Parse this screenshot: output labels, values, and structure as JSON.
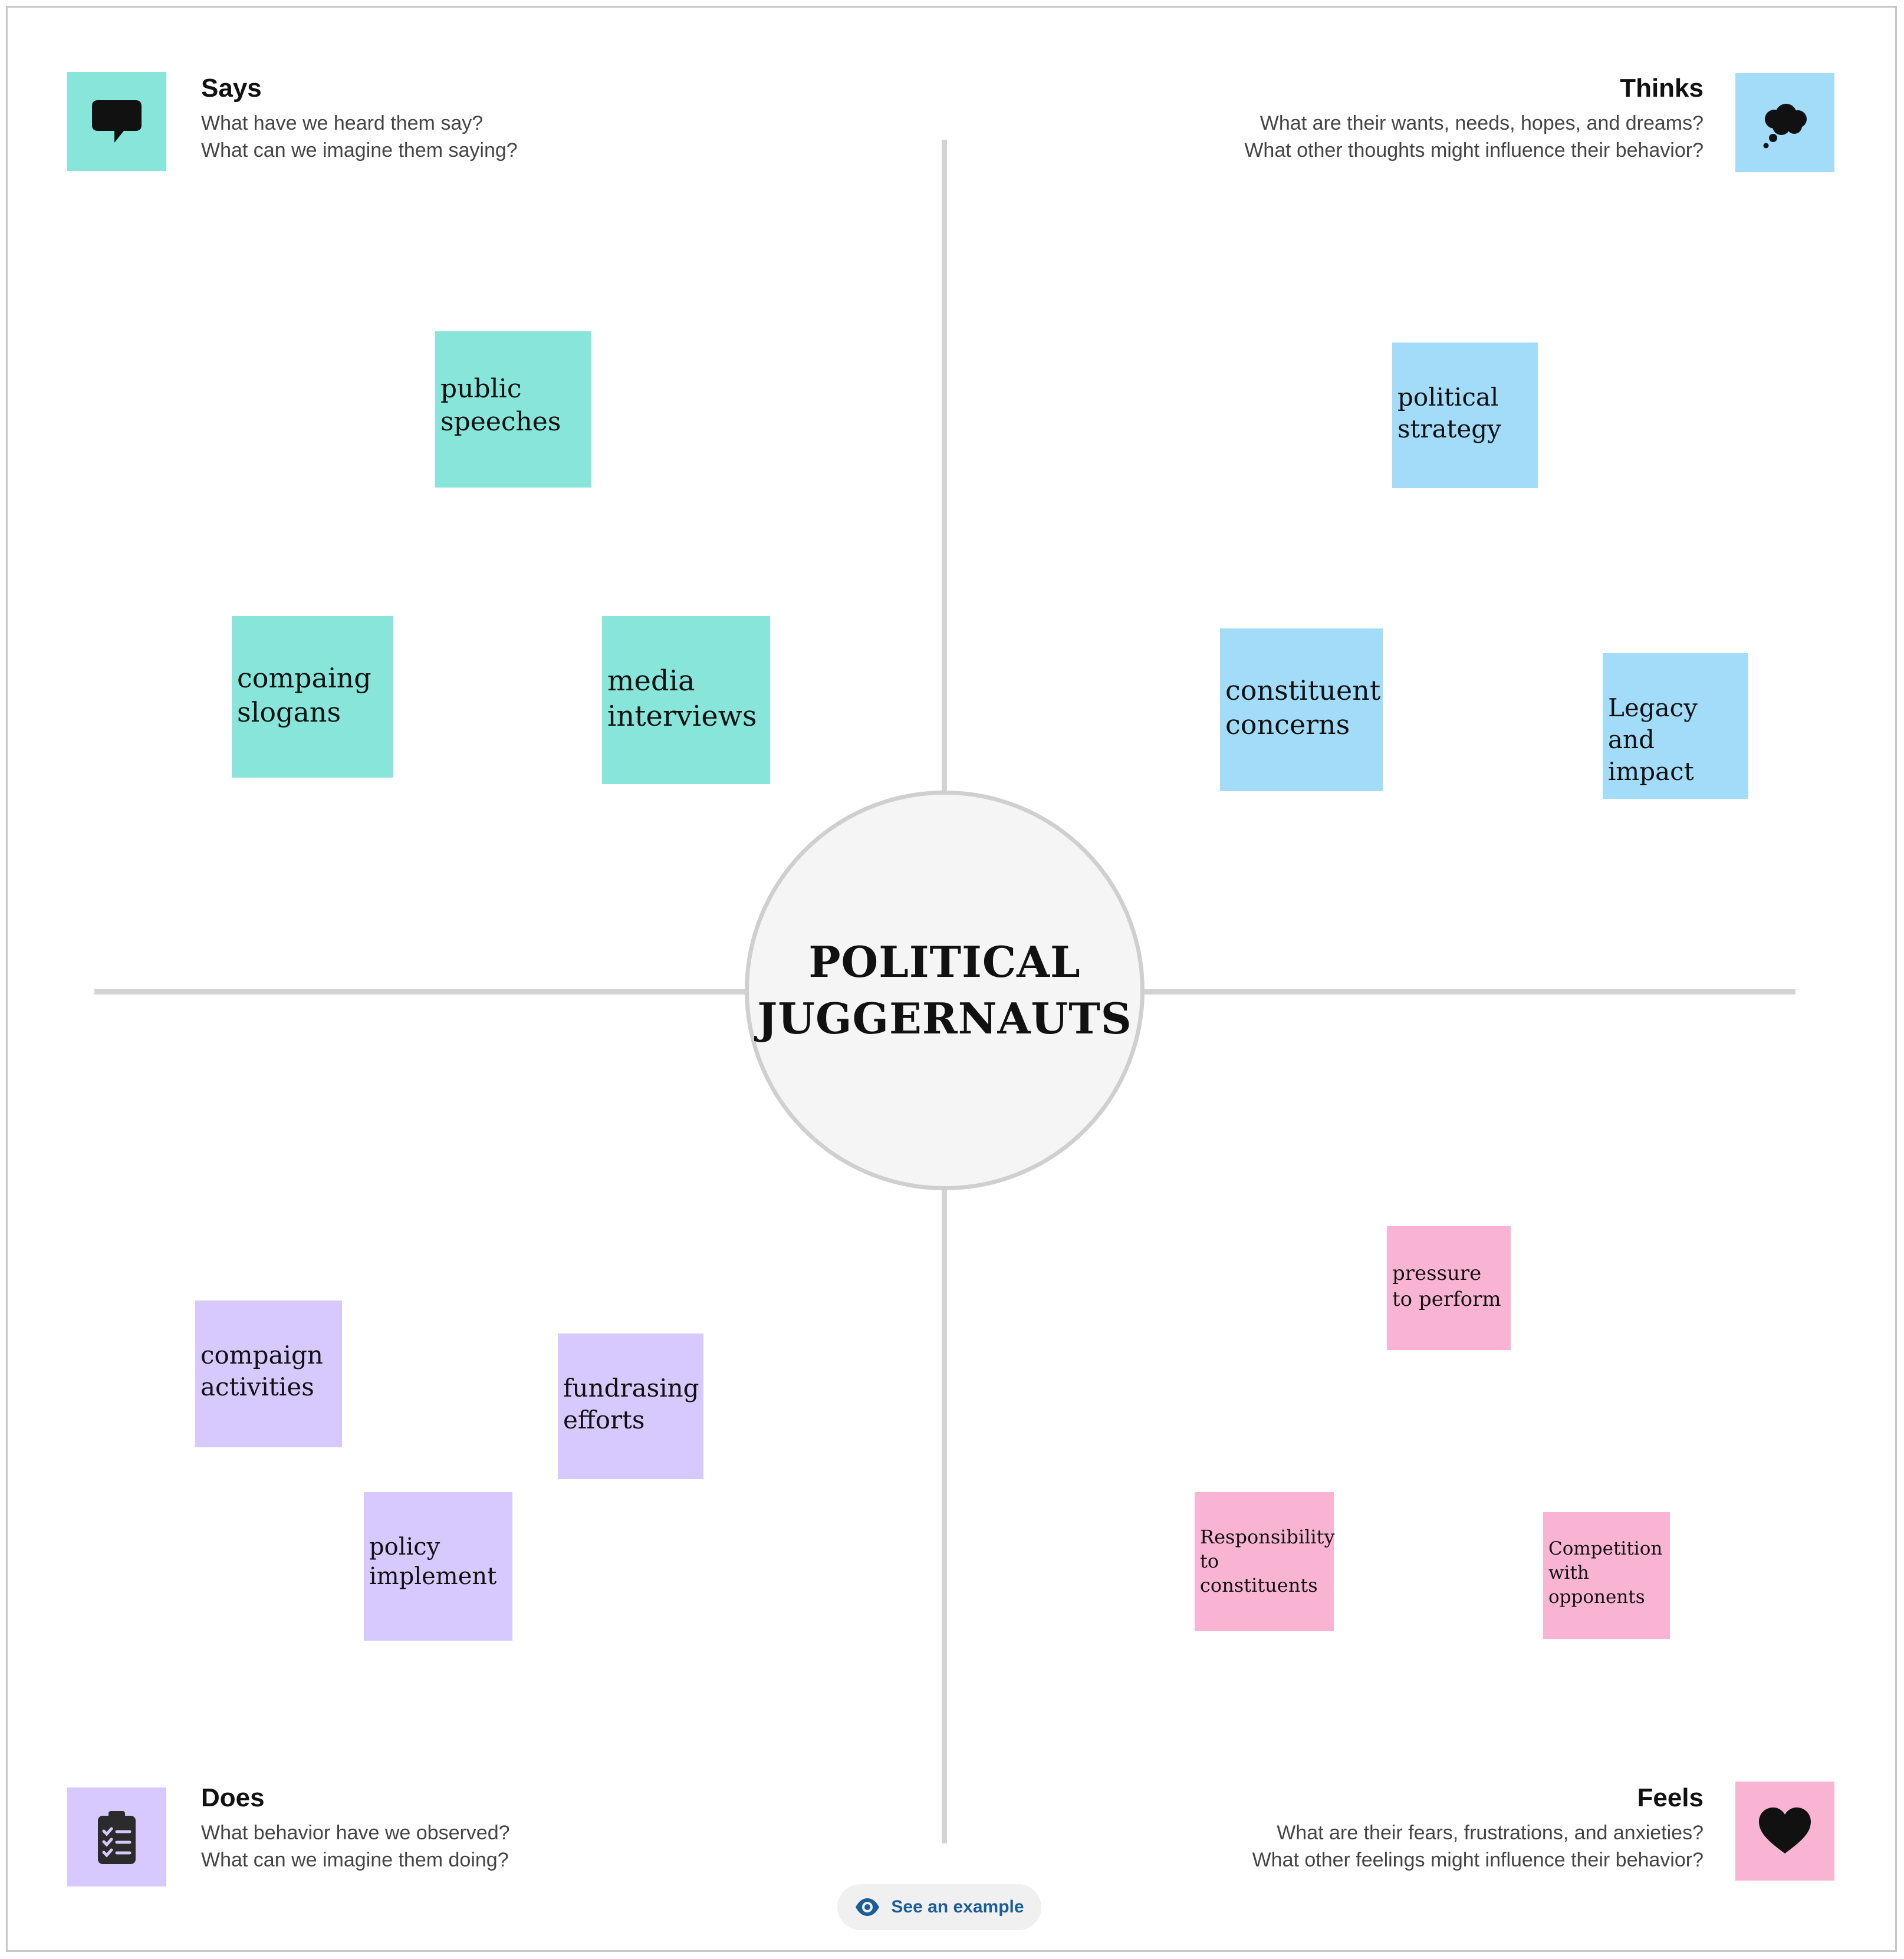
{
  "center": {
    "line1": "POLITICAL",
    "line2": "JUGGERNAUTS"
  },
  "quadrants": {
    "says": {
      "title": "Says",
      "prompt1": "What have we heard them say?",
      "prompt2": "What can we imagine them saying?",
      "icon": "speech-bubble-icon",
      "color": "#88e5da",
      "notes": [
        "public speeches",
        "compaing slogans",
        "media interviews"
      ]
    },
    "thinks": {
      "title": "Thinks",
      "prompt1": "What are their wants, needs, hopes, and dreams?",
      "prompt2": "What other thoughts might influence their behavior?",
      "icon": "thought-cloud-icon",
      "color": "#a2dcf8",
      "notes": [
        "political strategy",
        "constituent concerns",
        "Legacy and impact"
      ]
    },
    "does": {
      "title": "Does",
      "prompt1": "What behavior have we observed?",
      "prompt2": "What can we imagine them doing?",
      "icon": "clipboard-checklist-icon",
      "color": "#d7c9fd",
      "notes": [
        "compaign activities",
        "fundrasing efforts",
        "policy implement"
      ]
    },
    "feels": {
      "title": "Feels",
      "prompt1": "What are their fears, frustrations, and anxieties?",
      "prompt2": "What other feelings might influence their behavior?",
      "icon": "heart-icon",
      "color": "#fab4d3",
      "notes": [
        "pressure to perform",
        "Responsibility to constituents",
        "Competition with opponents"
      ]
    }
  },
  "example_button": {
    "label": "See an example",
    "icon": "eye-icon",
    "color": "#1b5d97"
  }
}
